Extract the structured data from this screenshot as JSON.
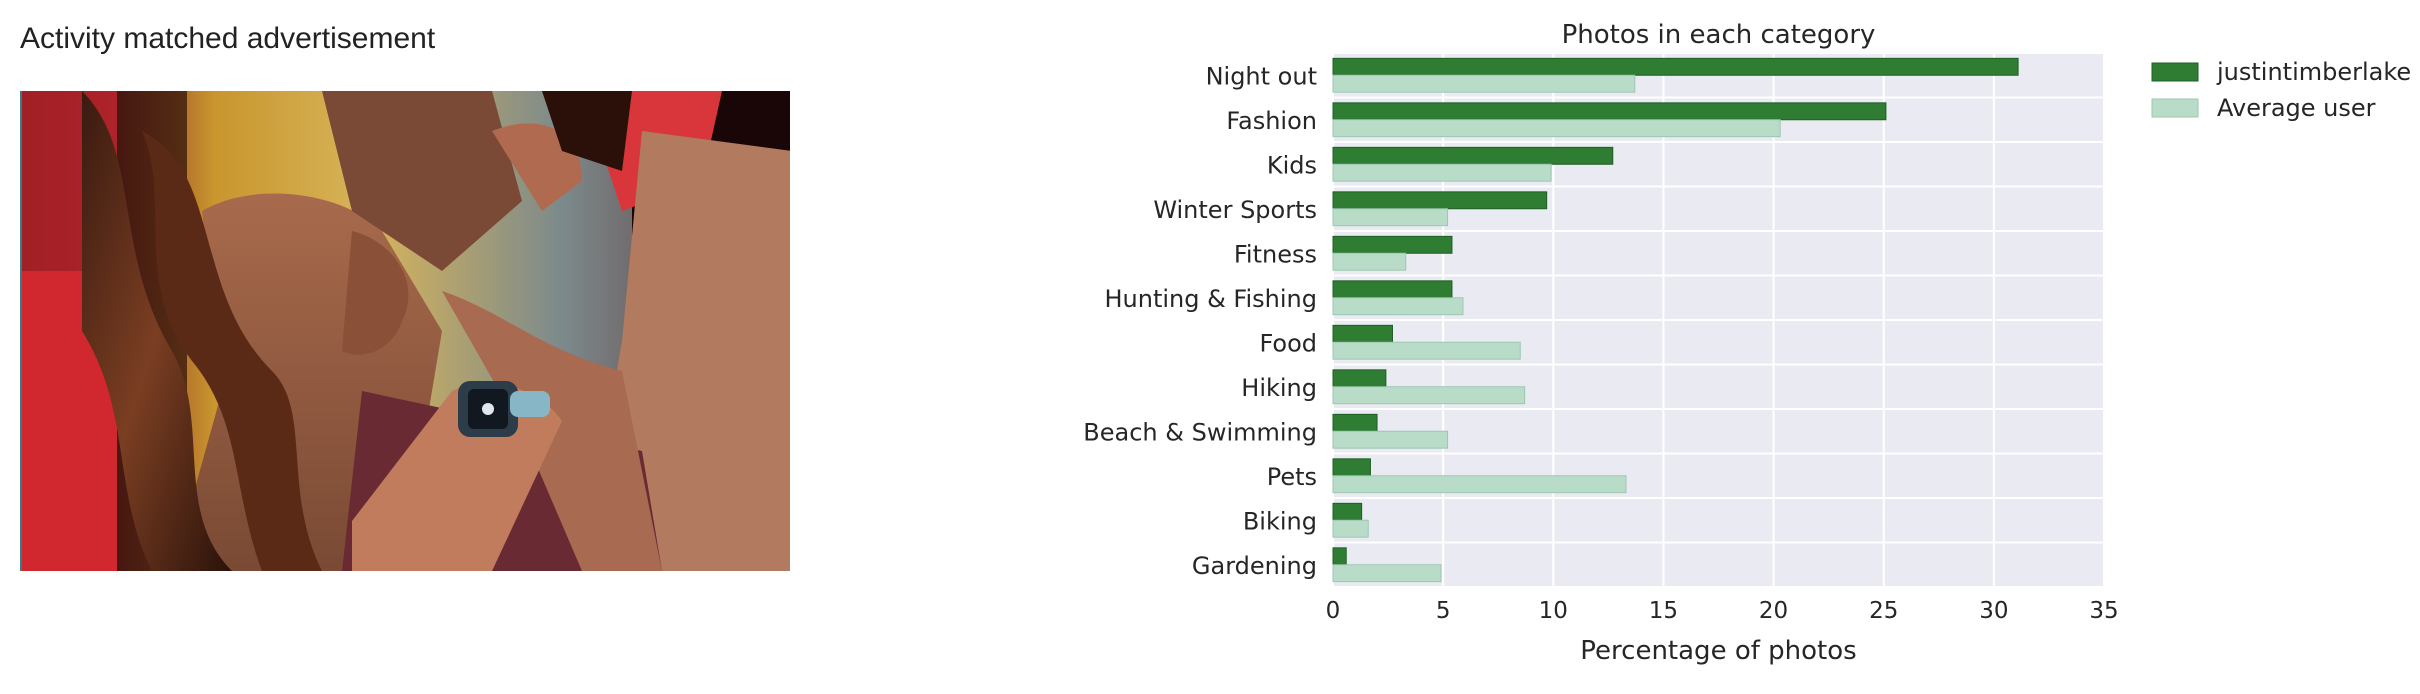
{
  "advertisement": {
    "heading": "Activity matched advertisement",
    "image_subject": "couple-embracing-smartwatch-photo"
  },
  "chart_data": {
    "type": "bar",
    "orientation": "horizontal",
    "title": "Photos in each category",
    "xlabel": "Percentage of photos",
    "ylabel": "",
    "xlim": [
      0,
      35
    ],
    "xticks": [
      0,
      5,
      10,
      15,
      20,
      25,
      30,
      35
    ],
    "grid": true,
    "legend_position": "outside-top-right",
    "categories": [
      "Night out",
      "Fashion",
      "Kids",
      "Winter Sports",
      "Fitness",
      "Hunting & Fishing",
      "Food",
      "Hiking",
      "Beach & Swimming",
      "Pets",
      "Biking",
      "Gardening"
    ],
    "series": [
      {
        "name": "justintimberlake",
        "color": "#2e7d32",
        "values": [
          31.1,
          25.1,
          12.7,
          9.7,
          5.4,
          5.4,
          2.7,
          2.4,
          2.0,
          1.7,
          1.3,
          0.6
        ]
      },
      {
        "name": "Average user",
        "color": "#b9dcc9",
        "values": [
          13.7,
          20.3,
          9.9,
          5.2,
          3.3,
          5.9,
          8.5,
          8.7,
          5.2,
          13.3,
          1.6,
          4.9
        ]
      }
    ],
    "plot_background": "#eaeaf2"
  }
}
